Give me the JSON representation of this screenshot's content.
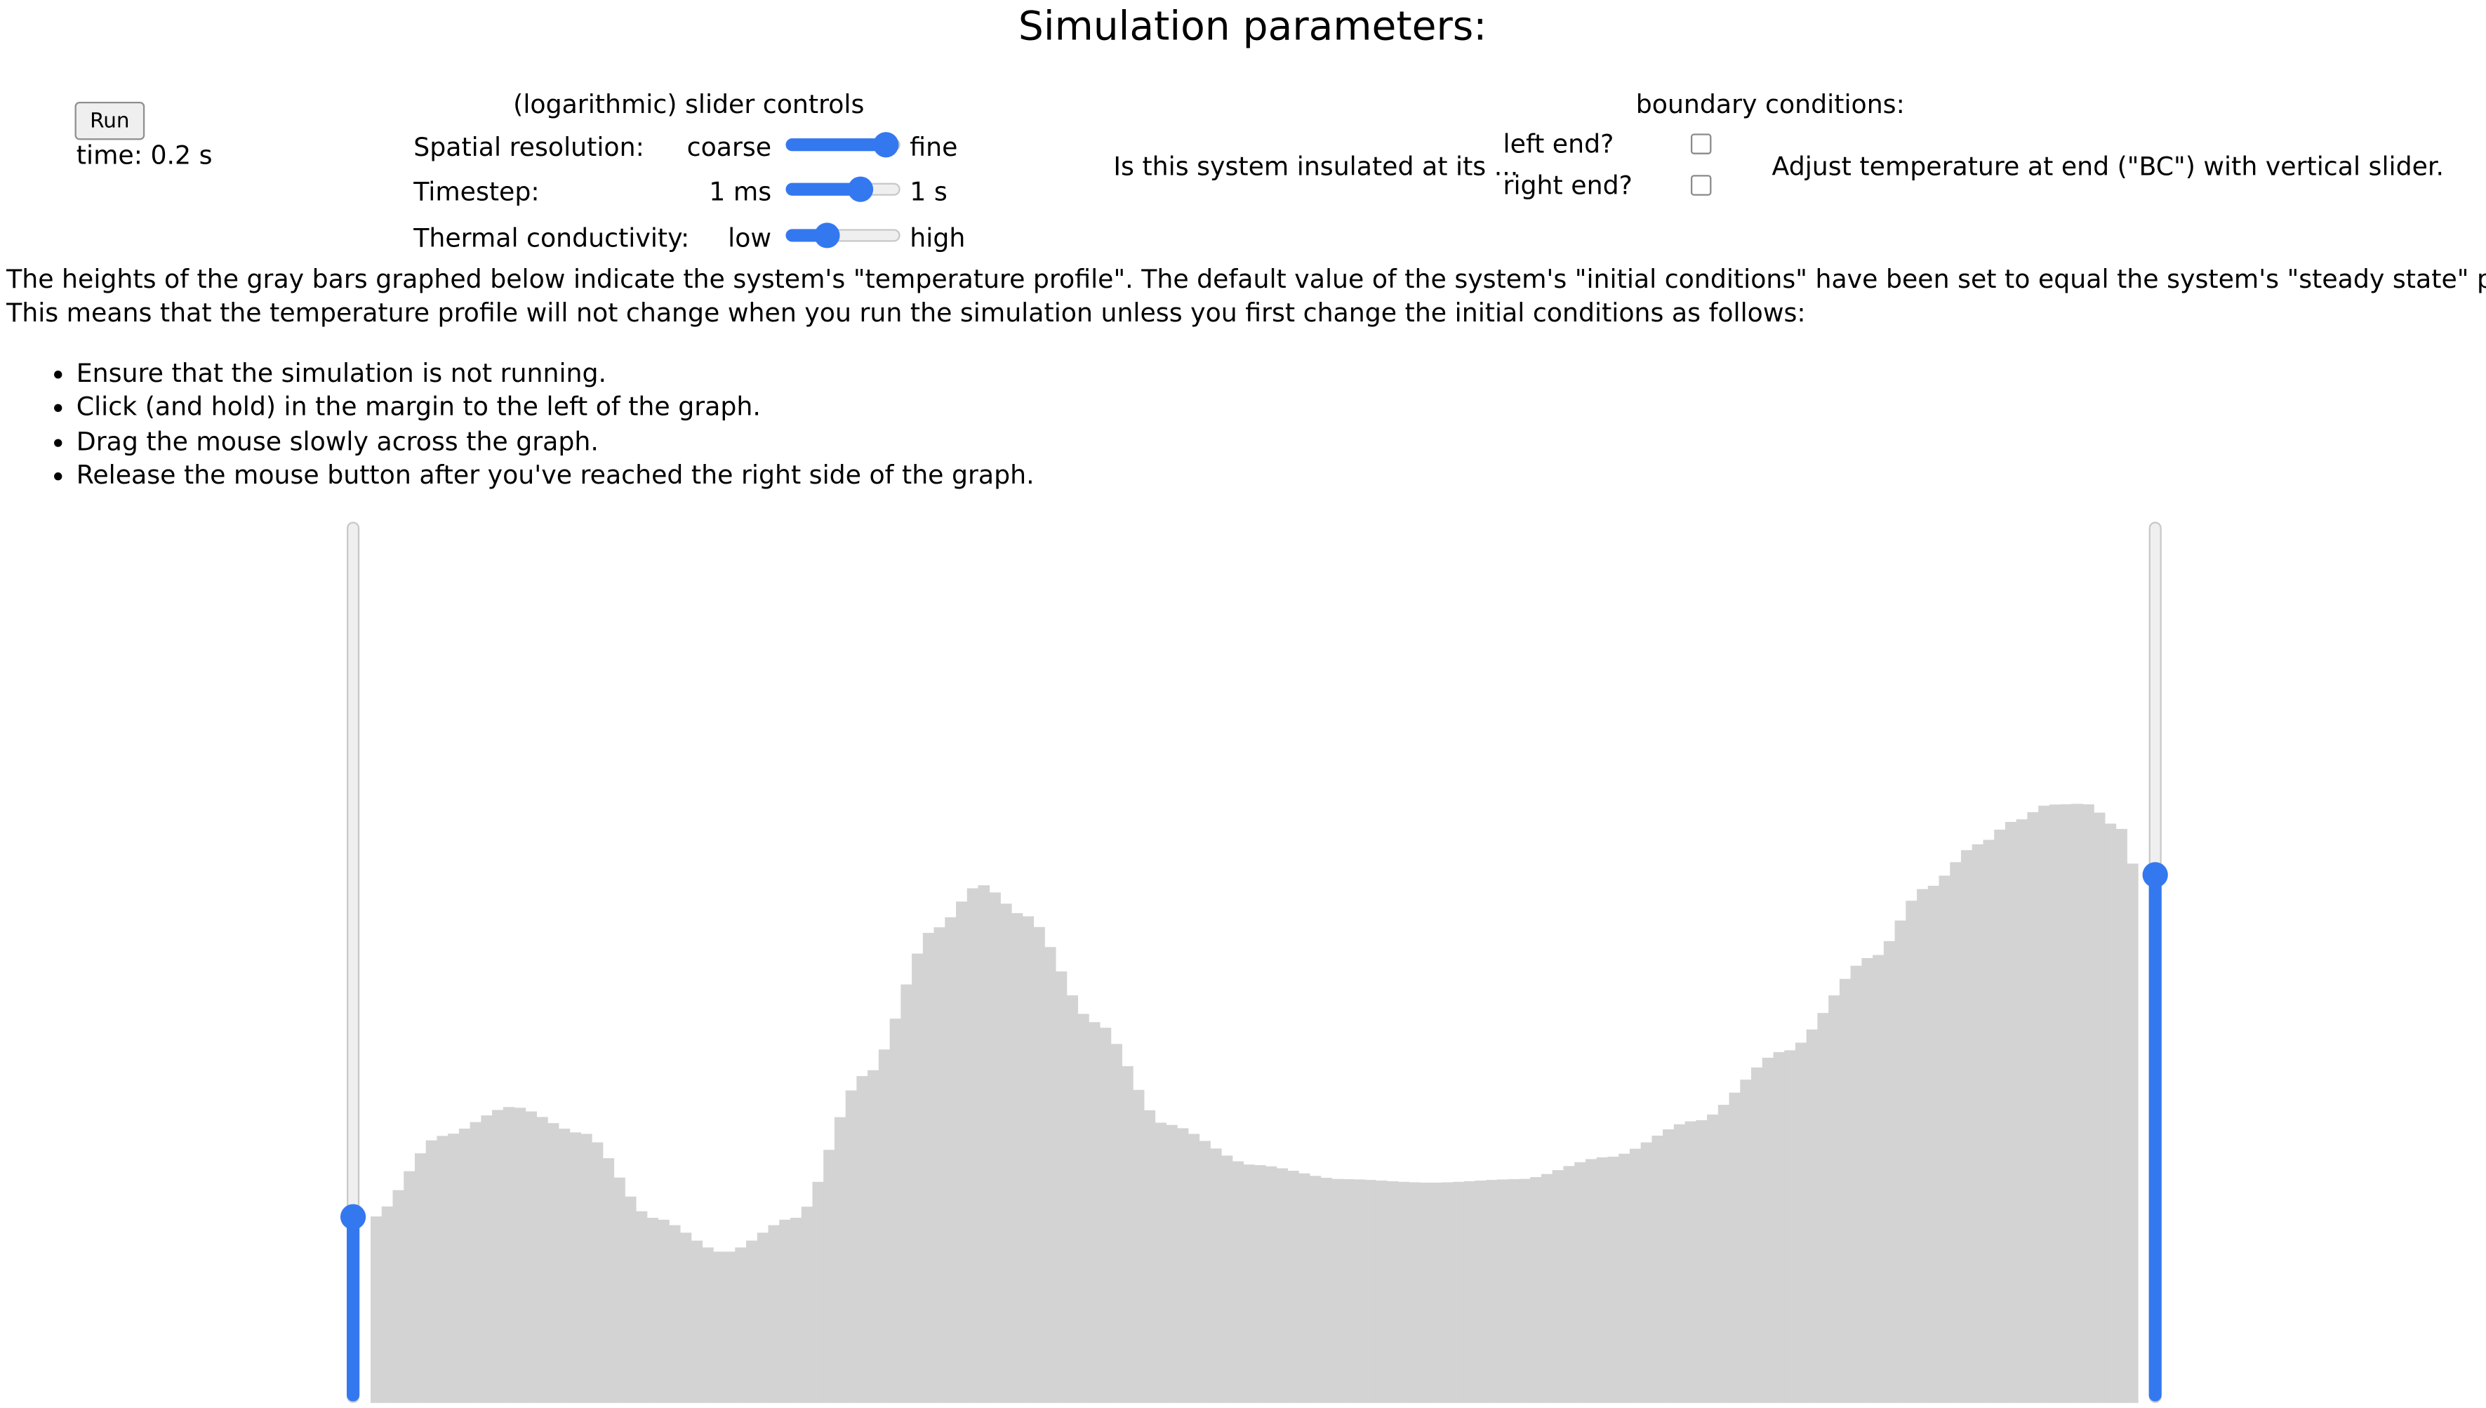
{
  "page_title": "Simulation parameters:",
  "run_button_label": "Run",
  "time_text": "time: 0.2 s",
  "slider_controls": {
    "heading": "(logarithmic) slider controls",
    "spatial_resolution": {
      "label": "Spatial resolution:",
      "min_label": "coarse",
      "max_label": "fine",
      "level": 0.88
    },
    "timestep": {
      "label": "Timestep:",
      "min_label": "1 ms",
      "max_label": "1 s",
      "level": 0.65
    },
    "thermal_conductivity": {
      "label": "Thermal conductivity:",
      "min_label": "low",
      "max_label": "high",
      "level": 0.35
    }
  },
  "boundary_conditions": {
    "heading": "boundary conditions:",
    "question": "Is this system insulated at its ...",
    "left_end_label": "left end?",
    "right_end_label": "right end?",
    "left_end_checked": false,
    "right_end_checked": false,
    "hint": "Adjust temperature at end (\"BC\") with vertical slider."
  },
  "description": {
    "line1": "The heights of the gray bars graphed below indicate the system's \"temperature profile\". The default value of the system's \"initial conditions\" have been set to equal the system's \"steady state\" profile.",
    "line2": "This means that the temperature profile will not change when you run the simulation unless you first change the initial conditions as follows:"
  },
  "instructions": [
    "Ensure that the simulation is not running.",
    "Click (and hold) in the margin to the left of the graph.",
    "Drag the mouse slowly across the graph.",
    "Release the mouse button after you've reached the right side of the graph."
  ],
  "left_bc_level": 0.21,
  "right_bc_level": 0.6,
  "colors": {
    "accent": "#3478f0",
    "bar": "#d3d3d3"
  },
  "chart_data": {
    "type": "bar",
    "title": "",
    "xlabel": "",
    "ylabel": "",
    "ylim": [
      0,
      1
    ],
    "grid": false,
    "bar_count": 160,
    "profile_keypoints": [
      [
        0,
        0.21
      ],
      [
        0.04,
        0.303
      ],
      [
        0.08,
        0.336
      ],
      [
        0.12,
        0.306
      ],
      [
        0.16,
        0.21
      ],
      [
        0.2,
        0.171
      ],
      [
        0.24,
        0.21
      ],
      [
        0.28,
        0.372
      ],
      [
        0.32,
        0.539
      ],
      [
        0.345,
        0.588
      ],
      [
        0.37,
        0.553
      ],
      [
        0.41,
        0.432
      ],
      [
        0.45,
        0.316
      ],
      [
        0.5,
        0.27
      ],
      [
        0.55,
        0.254
      ],
      [
        0.6,
        0.25
      ],
      [
        0.65,
        0.254
      ],
      [
        0.7,
        0.279
      ],
      [
        0.75,
        0.32
      ],
      [
        0.8,
        0.399
      ],
      [
        0.85,
        0.506
      ],
      [
        0.88,
        0.584
      ],
      [
        0.91,
        0.634
      ],
      [
        0.93,
        0.66
      ],
      [
        0.95,
        0.679
      ],
      [
        0.97,
        0.68
      ],
      [
        0.99,
        0.652
      ],
      [
        1.0,
        0.6
      ]
    ]
  }
}
